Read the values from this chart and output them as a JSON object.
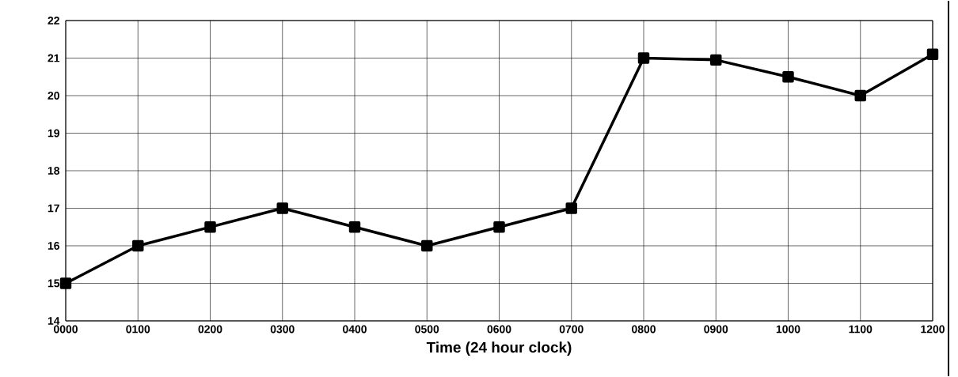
{
  "chart_data": {
    "type": "line",
    "xlabel": "Time (24 hour clock)",
    "categories": [
      "0000",
      "0100",
      "0200",
      "0300",
      "0400",
      "0500",
      "0600",
      "0700",
      "0800",
      "0900",
      "1000",
      "1100",
      "1200"
    ],
    "series": [
      {
        "color": "#000000",
        "values": [
          15,
          16,
          16.5,
          17,
          16.5,
          16,
          16.5,
          17,
          21,
          20.95,
          20.5,
          20,
          21.1
        ]
      }
    ],
    "ylim": [
      14,
      22
    ],
    "yticks": [
      14,
      15,
      16,
      17,
      18,
      19,
      20,
      21,
      22
    ],
    "grid": true,
    "marker": "square",
    "line_style": "solid"
  }
}
